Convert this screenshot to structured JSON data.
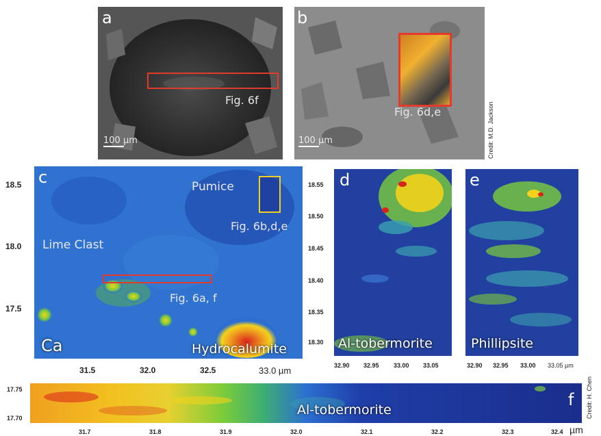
{
  "panel_a": {
    "letter": "a",
    "fig_label": "Fig. 6f",
    "scale_label": "100 µm"
  },
  "panel_b": {
    "letter": "b",
    "fig_label": "Fig. 6d,e",
    "scale_label": "100 µm"
  },
  "credit_top": "Credit: M.D. Jackson",
  "panel_c": {
    "letter": "c",
    "labels": {
      "pumice": "Pumice",
      "lime_clast": "Lime Clast",
      "ca": "Ca",
      "hydrocalumite": "Hydrocalumite"
    },
    "fig_labels": {
      "pumice_box": "Fig. 6b,d,e",
      "red_box": "Fig. 6a, f"
    },
    "y_ticks": [
      "18.5",
      "18.0",
      "17.5"
    ],
    "x_ticks": [
      "31.5",
      "32.0",
      "32.5",
      "33.0 µm"
    ]
  },
  "panel_d": {
    "letter": "d",
    "label": "Al-tobermorite",
    "y_ticks": [
      "18.55",
      "18.50",
      "18.45",
      "18.40",
      "18.35",
      "18.30"
    ],
    "x_ticks": [
      "32.90",
      "32.95",
      "33.00",
      "33.05"
    ]
  },
  "panel_e": {
    "letter": "e",
    "label": "Phillipsite",
    "x_ticks": [
      "32.90",
      "32.95",
      "33.00",
      "33.05 µm"
    ]
  },
  "panel_f": {
    "letter": "f",
    "label": "Al-tobermorite",
    "y_ticks": [
      "17.75",
      "17.70"
    ],
    "x_ticks": [
      "31.7",
      "31.8",
      "31.9",
      "32.0",
      "32.1",
      "32.2",
      "32.3",
      "32.4"
    ],
    "x_unit": "µm"
  },
  "credit_bottom": "Credit: H. Chen",
  "colors": {
    "map_low": "#1a2e8c",
    "map_mid": "#2c6fd0",
    "map_high": "#f2d21c",
    "map_peak": "#d8231a",
    "frame_red": "#e33a2b",
    "frame_yellow": "#f0d020"
  }
}
